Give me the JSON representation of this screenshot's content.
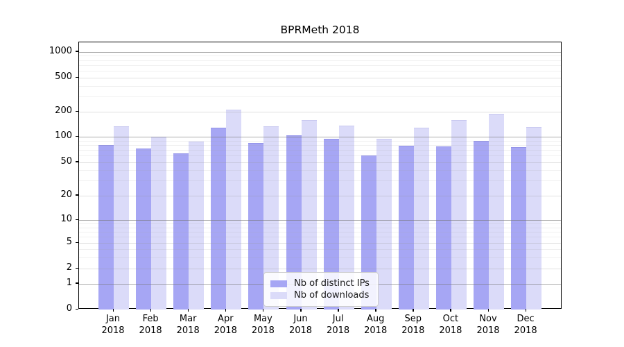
{
  "chart_data": {
    "type": "bar",
    "title": "BPRMeth 2018",
    "year": "2018",
    "categories": [
      "Jan",
      "Feb",
      "Mar",
      "Apr",
      "May",
      "Jun",
      "Jul",
      "Aug",
      "Sep",
      "Oct",
      "Nov",
      "Dec"
    ],
    "series": [
      {
        "name": "Nb of distinct IPs",
        "values": [
          80,
          72,
          64,
          128,
          84,
          104,
          95,
          60,
          78,
          77,
          89,
          75
        ],
        "color": "#a6a6f4",
        "edge": "#9494e9"
      },
      {
        "name": "Nb of downloads",
        "values": [
          133,
          100,
          87,
          210,
          133,
          160,
          137,
          94,
          128,
          158,
          189,
          132
        ],
        "color": "#dbdbf9",
        "edge": "#c9c9f0"
      }
    ],
    "yscale": "symlog",
    "yticks": [
      0,
      1,
      2,
      5,
      10,
      20,
      50,
      100,
      200,
      500,
      1000
    ],
    "ylim": [
      0,
      1300
    ],
    "grid": true,
    "legend_position": "lower center-left inside plot"
  }
}
